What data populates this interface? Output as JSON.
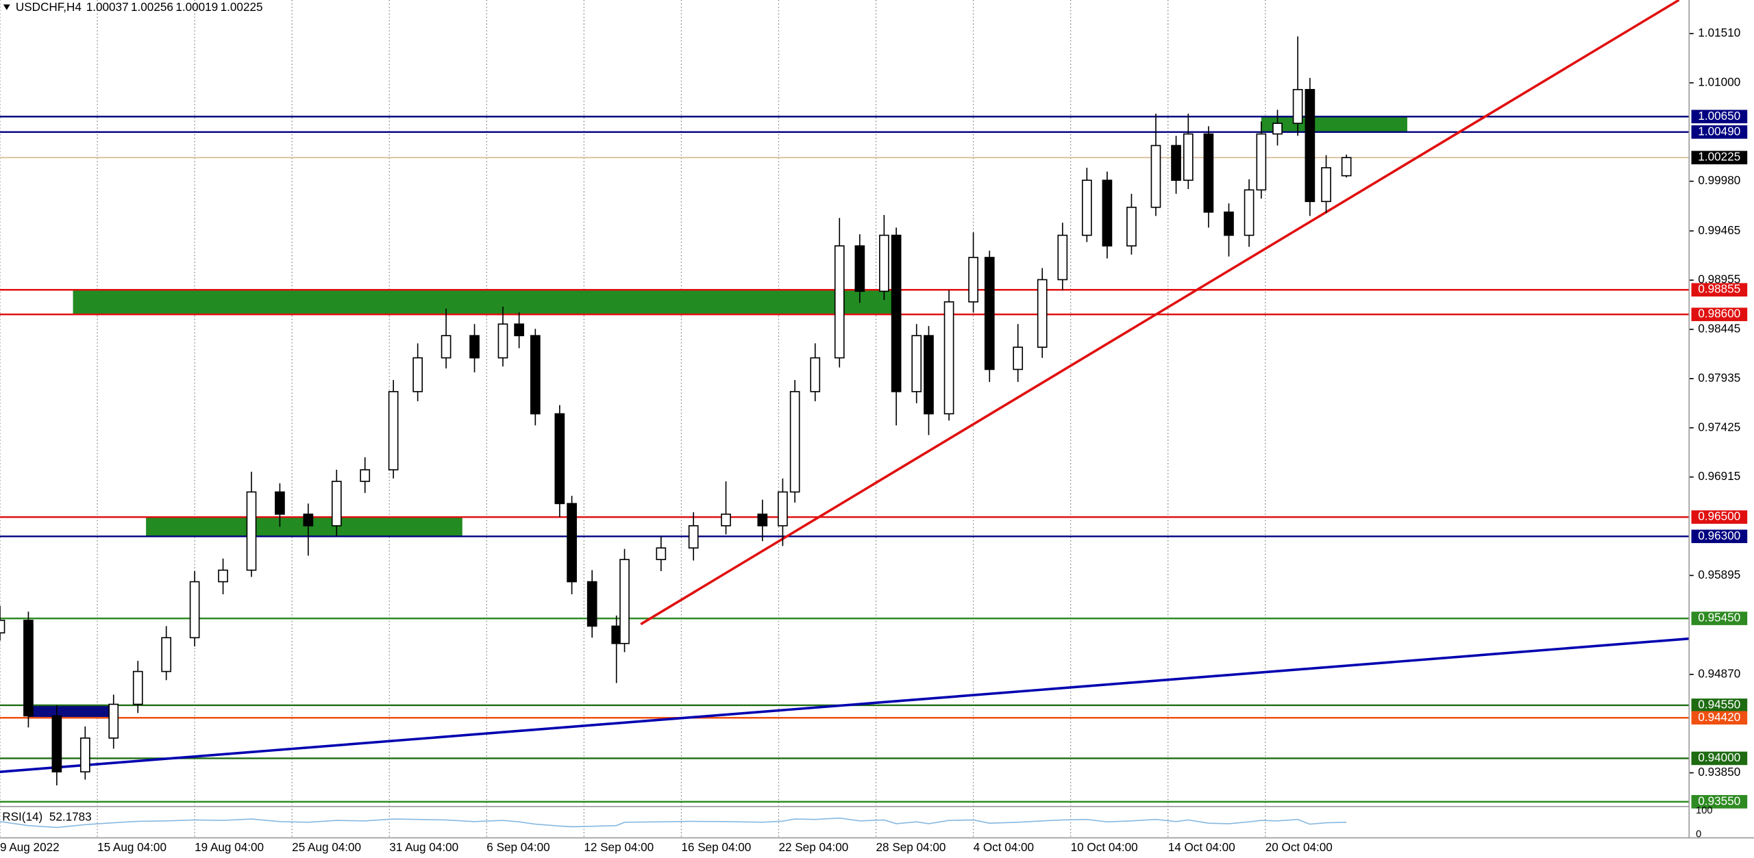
{
  "chart_data": {
    "type": "candlestick",
    "symbol": "USDCHF,H4",
    "up_color": "#ffffff",
    "down_color": "#000000",
    "xlim": [
      0,
      416.5
    ],
    "ylim": [
      0.93512,
      1.01858
    ],
    "xticks": [
      {
        "value": 0,
        "label": "9 Aug 2022"
      },
      {
        "value": 24,
        "label": "15 Aug 04:00"
      },
      {
        "value": 48,
        "label": "19 Aug 04:00"
      },
      {
        "value": 72,
        "label": "25 Aug 04:00"
      },
      {
        "value": 96,
        "label": "31 Aug 04:00"
      },
      {
        "value": 120,
        "label": "6 Sep 04:00"
      },
      {
        "value": 144,
        "label": "12 Sep 04:00"
      },
      {
        "value": 168,
        "label": "16 Sep 04:00"
      },
      {
        "value": 192,
        "label": "22 Sep 04:00"
      },
      {
        "value": 216,
        "label": "28 Sep 04:00"
      },
      {
        "value": 240,
        "label": "4 Oct 04:00"
      },
      {
        "value": 264,
        "label": "10 Oct 04:00"
      },
      {
        "value": 288,
        "label": "14 Oct 04:00"
      },
      {
        "value": 312,
        "label": "20 Oct 04:00"
      }
    ],
    "yticks": [
      {
        "value": 1.0151,
        "label": "1.01510"
      },
      {
        "value": 1.01,
        "label": "1.01000"
      },
      {
        "value": 0.9998,
        "label": "0.99980"
      },
      0.99465,
      0.98955,
      0.98445,
      0.97935,
      0.97425,
      0.96915,
      0.95895,
      {
        "value": 0.9487,
        "label": "0.94870"
      },
      {
        "value": 0.9385,
        "label": "0.93850"
      }
    ],
    "candles": {
      "x": [
        0,
        7,
        14,
        21,
        28,
        34,
        41,
        48,
        55,
        62,
        69,
        76,
        83,
        90,
        97,
        103,
        110,
        117,
        124,
        128,
        132,
        138,
        141,
        146,
        152,
        154,
        163,
        171,
        179,
        188,
        193,
        196,
        201,
        207,
        212,
        218,
        221,
        226,
        229,
        234,
        240,
        244,
        251,
        257,
        262,
        268,
        273,
        279,
        285,
        290,
        293,
        298,
        303,
        308,
        311,
        315,
        320,
        323,
        327,
        332
      ],
      "open": [
        0.953,
        0.9543,
        0.9444,
        0.9386,
        0.9421,
        0.9456,
        0.949,
        0.9525,
        0.9583,
        0.9595,
        0.9676,
        0.9653,
        0.9641,
        0.9687,
        0.9699,
        0.978,
        0.9815,
        0.9838,
        0.9815,
        0.985,
        0.9838,
        0.9757,
        0.9664,
        0.9583,
        0.9537,
        0.9519,
        0.9606,
        0.9618,
        0.9641,
        0.9653,
        0.9641,
        0.9676,
        0.978,
        0.9815,
        0.9931,
        0.9884,
        0.9942,
        0.978,
        0.9838,
        0.9757,
        0.9873,
        0.9919,
        0.9803,
        0.9826,
        0.9896,
        0.9942,
        0.9999,
        0.9931,
        0.9971,
        1.0035,
        0.9999,
        1.0047,
        0.9966,
        0.9942,
        0.9989,
        1.0047,
        1.0058,
        1.0093,
        0.9977,
        1.00037
      ],
      "high": [
        0.9558,
        0.9552,
        0.9455,
        0.9433,
        0.9466,
        0.9501,
        0.9537,
        0.9594,
        0.9607,
        0.9697,
        0.9685,
        0.9664,
        0.9699,
        0.9712,
        0.9792,
        0.983,
        0.9866,
        0.985,
        0.9868,
        0.9862,
        0.9845,
        0.9766,
        0.9672,
        0.9595,
        0.9548,
        0.9617,
        0.963,
        0.9655,
        0.9687,
        0.9668,
        0.969,
        0.9792,
        0.983,
        0.996,
        0.9943,
        0.9963,
        0.995,
        0.985,
        0.9848,
        0.9885,
        0.9945,
        0.9926,
        0.985,
        0.9908,
        0.9955,
        1.0012,
        1.0008,
        0.9985,
        1.0068,
        1.0045,
        1.0068,
        1.0055,
        0.9975,
        1.0,
        1.006,
        1.0072,
        1.0148,
        1.0105,
        1.0025,
        1.00256
      ],
      "low": [
        0.9522,
        0.9432,
        0.9372,
        0.9378,
        0.941,
        0.9447,
        0.9481,
        0.9516,
        0.957,
        0.9588,
        0.964,
        0.961,
        0.963,
        0.9675,
        0.969,
        0.977,
        0.9804,
        0.98,
        0.9806,
        0.9825,
        0.9745,
        0.965,
        0.957,
        0.9525,
        0.9478,
        0.951,
        0.9594,
        0.9605,
        0.9632,
        0.9625,
        0.962,
        0.9665,
        0.977,
        0.9805,
        0.9872,
        0.9875,
        0.9745,
        0.9768,
        0.9735,
        0.975,
        0.9862,
        0.979,
        0.979,
        0.9815,
        0.9885,
        0.9935,
        0.9918,
        0.9922,
        0.9962,
        0.9985,
        0.999,
        0.995,
        0.992,
        0.993,
        0.998,
        1.0035,
        1.0045,
        0.9962,
        0.9965,
        1.00019
      ],
      "close": [
        0.9543,
        0.9444,
        0.9386,
        0.9421,
        0.9456,
        0.949,
        0.9525,
        0.9583,
        0.9595,
        0.9676,
        0.9653,
        0.9641,
        0.9687,
        0.9699,
        0.978,
        0.9815,
        0.9838,
        0.9815,
        0.985,
        0.9838,
        0.9757,
        0.9664,
        0.9583,
        0.9537,
        0.9519,
        0.9606,
        0.9618,
        0.9641,
        0.9653,
        0.9641,
        0.9676,
        0.978,
        0.9815,
        0.9931,
        0.9884,
        0.9942,
        0.978,
        0.9838,
        0.9757,
        0.9873,
        0.9919,
        0.9803,
        0.9826,
        0.9896,
        0.9942,
        0.9999,
        0.9931,
        0.9971,
        1.0035,
        0.9999,
        1.0047,
        0.9966,
        0.9942,
        0.9989,
        1.0047,
        1.0058,
        1.0093,
        0.9977,
        1.0012,
        1.00225
      ]
    },
    "levels": [
      {
        "value": 1.0065,
        "label": "1.00650",
        "color": "#000080"
      },
      {
        "value": 1.0049,
        "label": "1.00490",
        "color": "#000080"
      },
      {
        "value": 0.98855,
        "label": "0.98855",
        "color": "#e01010"
      },
      {
        "value": 0.986,
        "label": "0.98600",
        "color": "#e01010"
      },
      {
        "value": 0.965,
        "label": "0.96500",
        "color": "#e01010"
      },
      {
        "value": 0.963,
        "label": "0.96300",
        "color": "#000080"
      },
      {
        "value": 0.9545,
        "label": "0.95450",
        "color": "#2e8b22"
      },
      {
        "value": 0.9455,
        "label": "0.94550",
        "color": "#1e6b12"
      },
      {
        "value": 0.9442,
        "label": "0.94420",
        "color": "#f05010"
      },
      {
        "value": 0.94,
        "label": "0.94000",
        "color": "#1e6b12"
      },
      {
        "value": 0.9355,
        "label": "0.93550",
        "color": "#2e8b22"
      }
    ],
    "current_color": "#d8b890",
    "zones": [
      {
        "x": [
          18,
          220
        ],
        "y": [
          0.986,
          0.98855
        ],
        "color": "#228b22"
      },
      {
        "x": [
          36,
          114
        ],
        "y": [
          0.963,
          0.965
        ],
        "color": "#228b22"
      },
      {
        "x": [
          311,
          347
        ],
        "y": [
          1.0049,
          1.0065
        ],
        "color": "#228b22"
      },
      {
        "x": [
          7,
          28
        ],
        "y": [
          0.9442,
          0.9455
        ],
        "color": "#0a0a80"
      }
    ],
    "trendlines": [
      {
        "x": [
          158,
          414
        ],
        "y": [
          0.9539,
          1.01858
        ],
        "color": "#e01010"
      },
      {
        "x": [
          0,
          416.5
        ],
        "y": [
          0.9386,
          0.9524
        ],
        "color": "#0000b0"
      }
    ],
    "indicator": {
      "name": "RSI(14)",
      "color": "#87b8e0",
      "ylim": [
        0,
        100
      ],
      "yticks": [
        100,
        0
      ],
      "values": [
        55,
        38,
        30,
        42,
        50,
        56,
        58,
        62,
        60,
        66,
        55,
        52,
        60,
        58,
        66,
        64,
        62,
        55,
        60,
        54,
        44,
        36,
        33,
        35,
        38,
        52,
        54,
        56,
        55,
        52,
        57,
        66,
        64,
        70,
        58,
        62,
        46,
        54,
        46,
        60,
        62,
        48,
        52,
        58,
        62,
        64,
        54,
        58,
        64,
        55,
        62,
        48,
        46,
        54,
        60,
        58,
        64,
        44,
        50,
        52.1783
      ]
    }
  }
}
